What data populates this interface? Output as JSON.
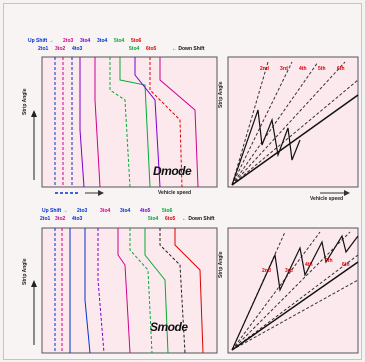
{
  "top_legend": {
    "up_shift_label": "Up Shift →",
    "up_items": [
      {
        "text": "2to3",
        "color": "#d0008c"
      },
      {
        "text": "3to4",
        "color": "#7a00cc"
      },
      {
        "text": "3to4",
        "color": "#0033cc"
      },
      {
        "text": "5to4",
        "color": "#00aa33"
      },
      {
        "text": "5to6",
        "color": "#dd0000"
      }
    ],
    "down_items": [
      {
        "text": "2to1",
        "color": "#0033cc"
      },
      {
        "text": "3to2",
        "color": "#d0008c"
      },
      {
        "text": "4to3",
        "color": "#0033cc"
      },
      {
        "text": "5to4",
        "color": "#00aa33"
      },
      {
        "text": "6to5",
        "color": "#dd0000"
      }
    ],
    "down_shift_label": "← Down Shift"
  },
  "mid_legend": {
    "up_shift_label": "Up Shift →",
    "up_items": [
      {
        "text": "2to3",
        "color": "#0033cc"
      },
      {
        "text": "3to4",
        "color": "#d0008c"
      },
      {
        "text": "3to4",
        "color": "#0033cc"
      },
      {
        "text": "4to5",
        "color": "#7a00cc"
      },
      {
        "text": "5to6",
        "color": "#00aa33"
      }
    ],
    "down_items": [
      {
        "text": "2to1",
        "color": "#0033cc"
      },
      {
        "text": "3to2",
        "color": "#d0008c"
      },
      {
        "text": "4to3",
        "color": "#0033cc"
      },
      {
        "text": "5to4",
        "color": "#00aa33"
      },
      {
        "text": "6to5",
        "color": "#dd0000"
      }
    ],
    "down_shift_label": "← Down Shift"
  },
  "labels": {
    "throttle_angle": "Strip Angle",
    "vehicle_speed": "Vehicle speed",
    "d_mode": "Dmode",
    "s_mode": "Smode"
  },
  "colors": {
    "panel_bg": "#fbe9ee",
    "red_gear": "#dd0000"
  },
  "gear_labels_top": [
    "2nd",
    "3rd",
    "4th",
    "5th",
    "6th"
  ],
  "gear_labels_bottom": [
    "2nd",
    "3rd",
    "4th",
    "5th",
    "6th"
  ]
}
